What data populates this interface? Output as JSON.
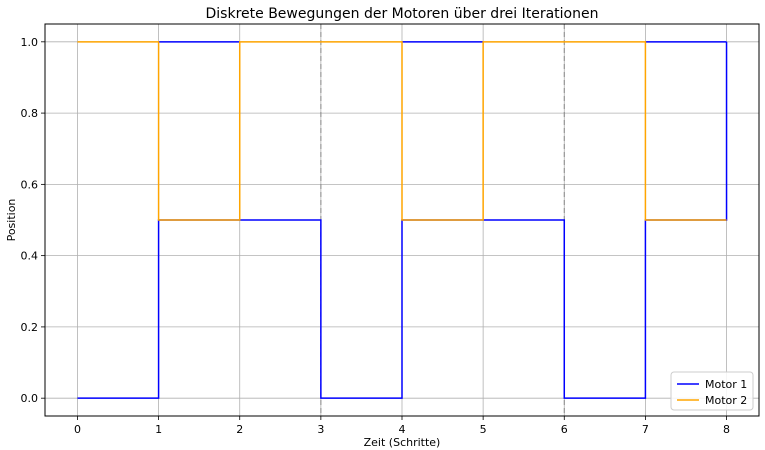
{
  "chart_data": {
    "type": "line",
    "step": "post",
    "title": "Diskrete Bewegungen der Motoren über drei Iterationen",
    "xlabel": "Zeit (Schritte)",
    "ylabel": "Position",
    "xlim": [
      -0.4,
      8.4
    ],
    "ylim": [
      -0.05,
      1.05
    ],
    "xticks": [
      0,
      1,
      2,
      3,
      4,
      5,
      6,
      7,
      8
    ],
    "yticks": [
      0.0,
      0.2,
      0.4,
      0.6,
      0.8,
      1.0
    ],
    "xtick_labels": [
      "0",
      "1",
      "2",
      "3",
      "4",
      "5",
      "6",
      "7",
      "8"
    ],
    "ytick_labels": [
      "0.0",
      "0.2",
      "0.4",
      "0.6",
      "0.8",
      "1.0"
    ],
    "grid": true,
    "iteration_boundaries": [
      3,
      6
    ],
    "x": [
      0,
      1,
      2,
      3,
      4,
      5,
      6,
      7,
      8
    ],
    "series": [
      {
        "name": "Motor 1",
        "color": "#0000ff",
        "values": [
          0,
          0.5,
          0.5,
          0,
          0.5,
          0.5,
          0,
          0.5,
          1.0
        ],
        "extra_segments": [
          [
            1,
            1.0,
            2,
            1.0
          ],
          [
            4,
            1.0,
            5,
            1.0
          ],
          [
            7,
            1.0,
            8,
            1.0
          ]
        ]
      },
      {
        "name": "Motor 2",
        "color": "#ffa500",
        "values": [
          1.0,
          0.5,
          1.0,
          1.0,
          0.5,
          1.0,
          1.0,
          0.5,
          0.5
        ]
      }
    ],
    "legend_position": "lower-right"
  }
}
